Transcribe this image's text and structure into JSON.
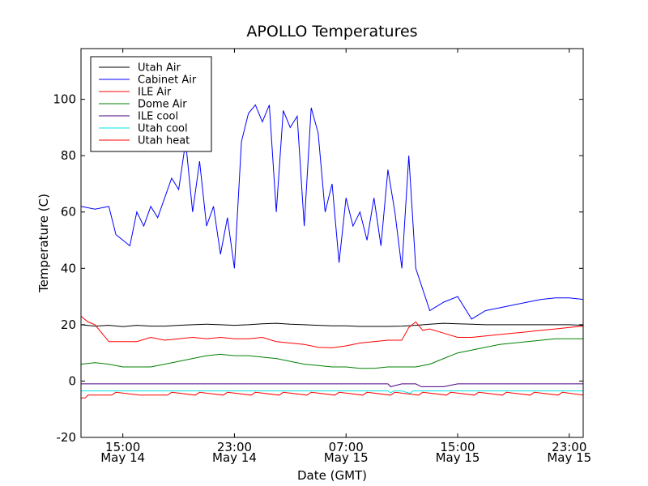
{
  "chart_data": {
    "type": "line",
    "title": "APOLLO Temperatures",
    "xlabel": "Date (GMT)",
    "ylabel": "Temperature (C)",
    "xlim_hours": [
      12,
      48
    ],
    "ylim": [
      -20,
      118
    ],
    "yticks": [
      -20,
      0,
      20,
      40,
      60,
      80,
      100
    ],
    "xticks": [
      {
        "hour": 15,
        "time": "15:00",
        "date": "May 14"
      },
      {
        "hour": 23,
        "time": "23:00",
        "date": "May 14"
      },
      {
        "hour": 31,
        "time": "07:00",
        "date": "May 15"
      },
      {
        "hour": 39,
        "time": "15:00",
        "date": "May 15"
      },
      {
        "hour": 47,
        "time": "23:00",
        "date": "May 15"
      }
    ],
    "grid": false,
    "legend_position": "top-left",
    "series": [
      {
        "name": "Utah Air",
        "color": "#000000",
        "x": [
          12,
          13,
          14,
          15,
          16,
          17,
          18,
          19,
          20,
          21,
          22,
          23,
          24,
          25,
          26,
          27,
          28,
          29,
          30,
          31,
          32,
          33,
          34,
          35,
          36,
          37,
          38,
          39,
          40,
          41,
          42,
          43,
          44,
          45,
          46,
          47,
          48
        ],
        "y": [
          20,
          19.5,
          19.8,
          19.3,
          19.8,
          19.5,
          19.5,
          19.8,
          20,
          20.2,
          20,
          19.8,
          20,
          20.3,
          20.5,
          20.2,
          20,
          19.8,
          19.6,
          19.6,
          19.4,
          19.4,
          19.4,
          19.5,
          19.8,
          20.2,
          20.5,
          20.3,
          20.2,
          20,
          20,
          20,
          20,
          20,
          20,
          20,
          19.8
        ]
      },
      {
        "name": "Cabinet Air",
        "color": "#0000ff",
        "x": [
          12,
          13,
          14,
          14.5,
          15,
          15.5,
          16,
          16.5,
          17,
          17.5,
          18,
          18.5,
          19,
          19.5,
          20,
          20.5,
          21,
          21.5,
          22,
          22.5,
          23,
          23.5,
          24,
          24.5,
          25,
          25.5,
          26,
          26.5,
          27,
          27.5,
          28,
          28.5,
          29,
          29.5,
          30,
          30.5,
          31,
          31.5,
          32,
          32.5,
          33,
          33.5,
          34,
          34.5,
          35,
          35.5,
          36,
          37,
          38,
          39,
          40,
          41,
          42,
          43,
          44,
          45,
          46,
          47,
          48
        ],
        "y": [
          62,
          61,
          62,
          52,
          50,
          48,
          60,
          55,
          62,
          58,
          65,
          72,
          68,
          85,
          60,
          78,
          55,
          62,
          45,
          58,
          40,
          85,
          95,
          98,
          92,
          98,
          60,
          96,
          90,
          94,
          55,
          97,
          88,
          60,
          70,
          42,
          65,
          55,
          60,
          50,
          65,
          48,
          75,
          60,
          40,
          80,
          40,
          25,
          28,
          30,
          22,
          25,
          26,
          27,
          28,
          29,
          29.5,
          29.5,
          29
        ]
      },
      {
        "name": "ILE Air",
        "color": "#ff0000",
        "x": [
          12,
          12.5,
          13,
          14,
          15,
          16,
          17,
          18,
          19,
          20,
          21,
          22,
          23,
          24,
          25,
          26,
          27,
          28,
          29,
          30,
          31,
          32,
          33,
          34,
          35,
          35.5,
          36,
          36.5,
          37,
          38,
          39,
          40,
          41,
          42,
          43,
          44,
          45,
          46,
          47,
          48
        ],
        "y": [
          23,
          21,
          20,
          14,
          14,
          14,
          15.5,
          14.5,
          15,
          15.5,
          15,
          15.5,
          15,
          15,
          15.5,
          14,
          13.5,
          13,
          12,
          11.8,
          12.5,
          13.5,
          14,
          14.5,
          14.5,
          19,
          21,
          18,
          18.5,
          17,
          15.5,
          15.5,
          16,
          16.5,
          17,
          17.5,
          18,
          18.5,
          19,
          19.5
        ]
      },
      {
        "name": "Dome Air",
        "color": "#008000",
        "x": [
          12,
          13,
          14,
          15,
          16,
          17,
          18,
          19,
          20,
          21,
          22,
          23,
          24,
          25,
          26,
          27,
          28,
          29,
          30,
          31,
          32,
          33,
          34,
          35,
          36,
          37,
          38,
          39,
          40,
          41,
          42,
          43,
          44,
          45,
          46,
          47,
          48
        ],
        "y": [
          6,
          6.5,
          6,
          5,
          5,
          5,
          6,
          7,
          8,
          9,
          9.5,
          9,
          9,
          8.5,
          8,
          7,
          6,
          5.5,
          5,
          5,
          4.5,
          4.5,
          5,
          5,
          5,
          6,
          8,
          10,
          11,
          12,
          13,
          13.5,
          14,
          14.5,
          15,
          15,
          15
        ]
      },
      {
        "name": "ILE cool",
        "color": "#4b0082",
        "x": [
          12,
          34,
          34.2,
          35,
          35.5,
          36,
          36.4,
          37,
          38,
          39,
          40,
          41,
          42,
          43,
          44,
          45,
          46,
          47,
          48
        ],
        "y": [
          -1,
          -1,
          -2,
          -1,
          -1,
          -1,
          -2,
          -2,
          -2,
          -1,
          -1,
          -1,
          -1,
          -1,
          -1,
          -1,
          -1,
          -1,
          -1
        ]
      },
      {
        "name": "Utah cool",
        "color": "#00e5e5",
        "x": [
          12,
          34,
          34.2,
          34.4,
          35,
          35.6,
          35.8,
          36,
          37,
          38,
          39,
          40,
          41,
          42,
          43,
          44,
          45,
          46,
          47,
          48
        ],
        "y": [
          -3.5,
          -3.5,
          -4.2,
          -3.5,
          -3.5,
          -4.4,
          -3.5,
          -3.5,
          -3.5,
          -3.5,
          -3.5,
          -3.5,
          -3.5,
          -3.5,
          -3.5,
          -3.5,
          -3.5,
          -3.5,
          -3.5,
          -3.5
        ]
      },
      {
        "name": "Utah heat",
        "color": "#ff0000",
        "x": [
          12,
          12.3,
          12.5,
          14.2,
          14.5,
          16.2,
          16.5,
          18.2,
          18.5,
          20.2,
          20.5,
          22.2,
          22.5,
          24.2,
          24.5,
          26.2,
          26.5,
          28.2,
          28.5,
          30.2,
          30.5,
          32.2,
          32.5,
          34.2,
          34.5,
          36.2,
          36.5,
          38.2,
          38.5,
          40.2,
          40.5,
          42.2,
          42.5,
          44.2,
          44.5,
          46.2,
          46.5,
          48
        ],
        "y": [
          -6,
          -6,
          -5,
          -5,
          -4,
          -5,
          -5,
          -5,
          -4,
          -5,
          -4,
          -5,
          -4,
          -5,
          -4,
          -5,
          -4,
          -5,
          -4,
          -5,
          -4,
          -5,
          -4,
          -5,
          -4,
          -5,
          -4,
          -5,
          -4,
          -5,
          -4,
          -5,
          -4,
          -5,
          -4,
          -5,
          -4,
          -5
        ]
      }
    ]
  }
}
